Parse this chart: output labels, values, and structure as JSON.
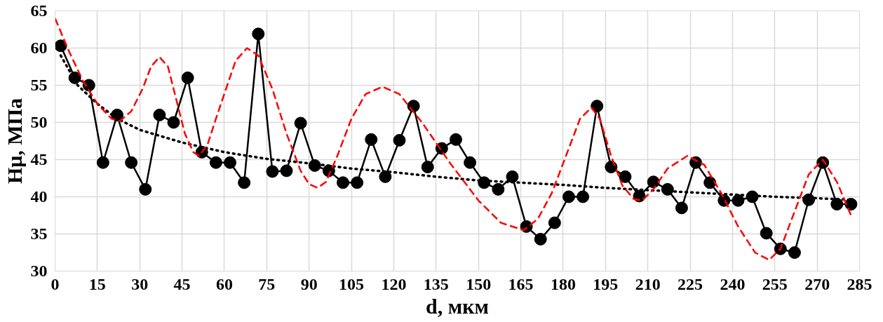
{
  "chart_data": {
    "type": "line",
    "xlabel": "d, мкм",
    "ylabel": "Hμ, МПа",
    "xlim": [
      0,
      285
    ],
    "xticks": [
      0,
      15,
      30,
      45,
      60,
      75,
      90,
      105,
      120,
      135,
      150,
      165,
      180,
      195,
      210,
      225,
      240,
      255,
      270,
      285
    ],
    "ylim": [
      30,
      65
    ],
    "yticks": [
      30,
      35,
      40,
      45,
      50,
      55,
      60,
      65
    ],
    "grid": true,
    "series": [
      {
        "color": "#ff0000",
        "line_style": "dashed",
        "marker": "none",
        "x": [
          0,
          5,
          10,
          15,
          20,
          23,
          27,
          31,
          34,
          37,
          40,
          43,
          46,
          49,
          51,
          54,
          57,
          61,
          64,
          68,
          72,
          77,
          82,
          87,
          90,
          93,
          96,
          100,
          105,
          110,
          116,
          122,
          130,
          140,
          150,
          158,
          166,
          171,
          176,
          181,
          186,
          190,
          193,
          197,
          201,
          205,
          208,
          212,
          217,
          224,
          230,
          236,
          242,
          248,
          253,
          257,
          262,
          267,
          272,
          277,
          282
        ],
        "values": [
          64,
          59.5,
          55.5,
          52.5,
          50.5,
          50.2,
          51.5,
          54.5,
          57.5,
          58.8,
          57.5,
          53,
          48.5,
          46,
          45.5,
          47,
          50.5,
          55,
          58.3,
          60,
          59,
          54.5,
          48.5,
          43.5,
          41.7,
          41.2,
          42,
          45.5,
          50.5,
          53.8,
          54.8,
          53.8,
          50,
          44.5,
          39.5,
          36.5,
          35.5,
          37,
          40.5,
          45.5,
          50.5,
          52,
          50.5,
          45.5,
          41.5,
          39.7,
          39.5,
          41,
          43.8,
          45.5,
          44.3,
          40.5,
          36,
          32.5,
          31.5,
          33,
          38,
          43,
          45,
          42,
          37.5
        ]
      },
      {
        "color": "#000000",
        "line_style": "dotted",
        "marker": "none",
        "x": [
          2,
          8,
          15,
          22,
          30,
          45,
          60,
          75,
          90,
          105,
          120,
          135,
          150,
          165,
          180,
          195,
          210,
          225,
          240,
          255,
          270,
          282
        ],
        "values": [
          59,
          55,
          52.5,
          50.5,
          49,
          47.3,
          46,
          45.1,
          44.5,
          43.8,
          43.3,
          42.7,
          42.2,
          41.9,
          41.6,
          41.2,
          40.9,
          40.6,
          40.3,
          40,
          39.8,
          39.6
        ]
      },
      {
        "color": "#000000",
        "line_style": "solid",
        "marker": "circle",
        "x": [
          2,
          7,
          12,
          17,
          22,
          27,
          32,
          37,
          42,
          47,
          52,
          57,
          62,
          67,
          72,
          77,
          82,
          87,
          92,
          97,
          102,
          107,
          112,
          117,
          122,
          127,
          132,
          137,
          142,
          147,
          152,
          157,
          162,
          167,
          172,
          177,
          182,
          187,
          192,
          197,
          202,
          207,
          212,
          217,
          222,
          227,
          232,
          237,
          242,
          247,
          252,
          257,
          262,
          267,
          272,
          277,
          282
        ],
        "values": [
          60.3,
          56,
          55,
          44.6,
          51,
          44.6,
          41,
          51,
          50,
          56,
          46,
          44.6,
          44.6,
          41.9,
          61.9,
          43.4,
          43.5,
          49.9,
          44.2,
          43.5,
          41.9,
          41.9,
          47.7,
          42.7,
          47.6,
          52.2,
          44,
          46.5,
          47.7,
          44.6,
          41.9,
          41,
          42.7,
          36,
          34.3,
          36.5,
          40,
          40,
          52.2,
          44,
          42.7,
          40.1,
          42,
          41,
          38.5,
          44.6,
          41.9,
          39.5,
          39.5,
          40,
          35.1,
          33,
          32.5,
          39.6,
          44.6,
          39,
          39
        ]
      }
    ]
  }
}
